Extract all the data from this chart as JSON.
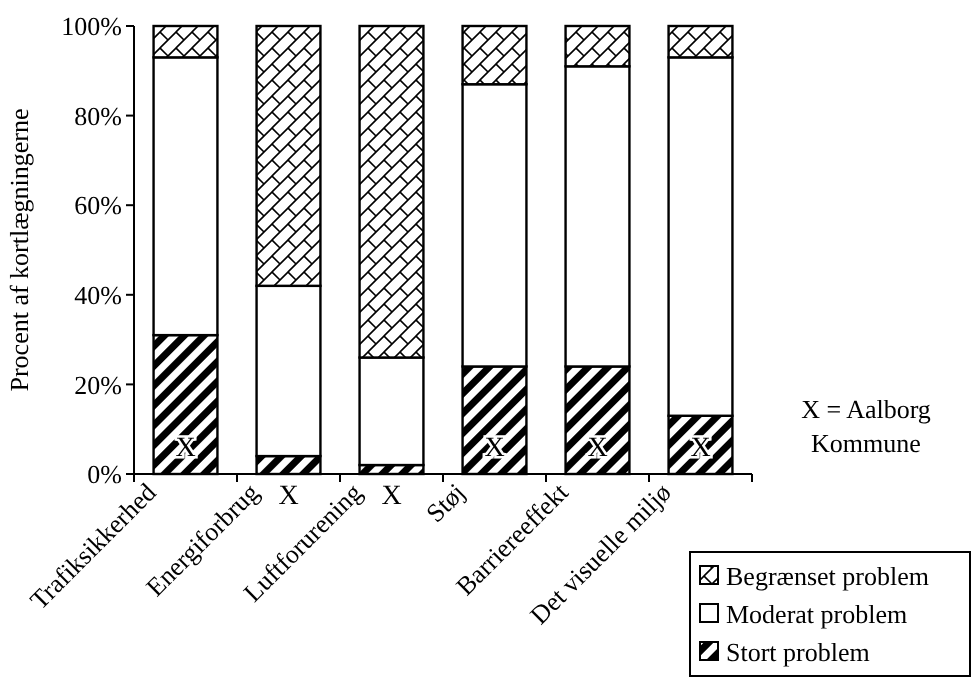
{
  "chart_data": {
    "type": "bar",
    "stacked": true,
    "ylabel": "Procent af kortlægningerne",
    "categories": [
      "Trafiksikkerhed",
      "Energiforbrug",
      "Luftforurening",
      "Støj",
      "Barriereeffekt",
      "Det visuelle miljø"
    ],
    "series": [
      {
        "name": "Stort problem",
        "color": "#000000",
        "values": [
          31,
          4,
          2,
          24,
          24,
          13
        ]
      },
      {
        "name": "Moderat problem",
        "color": "#ffffff",
        "values": [
          62,
          38,
          24,
          63,
          67,
          80
        ]
      },
      {
        "name": "Begrænset problem",
        "color": "#000000",
        "values": [
          7,
          58,
          74,
          13,
          9,
          7
        ]
      }
    ],
    "ylim": [
      0,
      100
    ],
    "yticks": [
      {
        "value": 0,
        "label": "0%"
      },
      {
        "value": 20,
        "label": "20%"
      },
      {
        "value": 40,
        "label": "40%"
      },
      {
        "value": 60,
        "label": "60%"
      },
      {
        "value": 80,
        "label": "80%"
      },
      {
        "value": 100,
        "label": "100%"
      }
    ],
    "legend": "bottom right",
    "annotations": [
      "X",
      "X",
      "X",
      "X",
      "X",
      "X",
      "X = Aalborg Kommune"
    ]
  }
}
